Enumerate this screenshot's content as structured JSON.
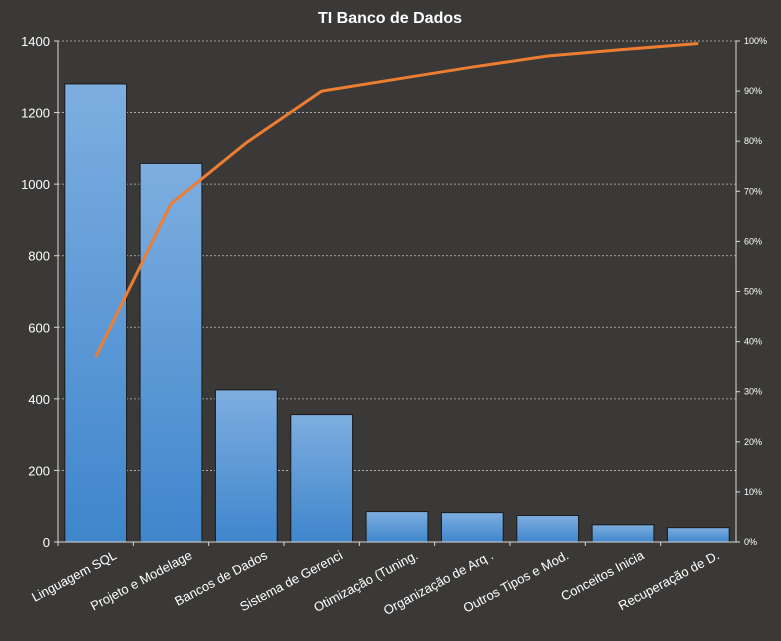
{
  "chart_data": {
    "type": "bar",
    "title": "TI Banco de Dados",
    "categories": [
      "Linguagem SQL",
      "Projeto e Modelage",
      "Bancos de Dados",
      "Sistema de Gerenci",
      "Otimização (Tuning.",
      "Organização de Arq .",
      "Outros Tipos e Mod.",
      "Conceitos Inicia",
      "Recuperação de D."
    ],
    "series": [
      {
        "type": "bar",
        "axis": "left",
        "values": [
          1280,
          1058,
          425,
          356,
          85,
          82,
          74,
          48,
          40
        ]
      },
      {
        "type": "line",
        "axis": "right",
        "values": [
          36.9,
          67.5,
          79.7,
          90.0,
          92.4,
          94.8,
          97.0,
          98.3,
          99.5
        ]
      }
    ],
    "ylim": [
      0,
      1400
    ],
    "yticks": [
      "0",
      "200",
      "400",
      "600",
      "800",
      "1000",
      "1200",
      "1400"
    ],
    "y2lim": [
      0,
      100
    ],
    "y2ticks": [
      "0%",
      "10%",
      "20%",
      "30%",
      "40%",
      "50%",
      "60%",
      "70%",
      "80%",
      "90%",
      "100%"
    ],
    "grid": true,
    "colors": {
      "background": "#3a3937",
      "bar_top": "#7eaee0",
      "bar_bottom": "#3f86cc",
      "line": "#ed7d31",
      "text": "#ffffff"
    }
  }
}
